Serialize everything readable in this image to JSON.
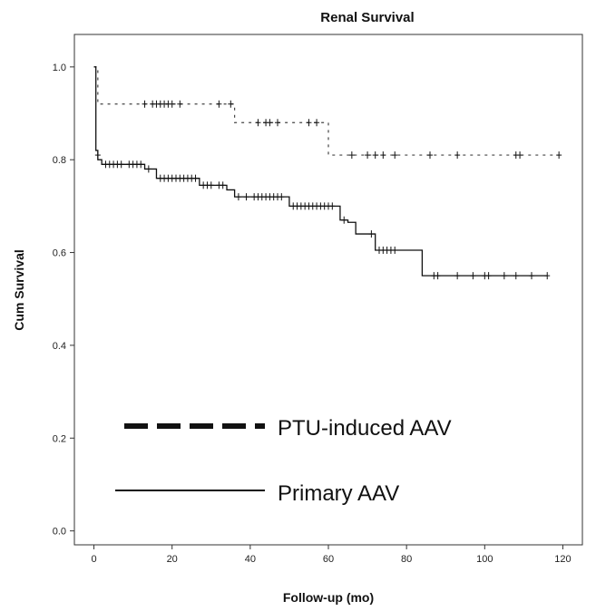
{
  "chart_data": {
    "type": "line",
    "title": "Renal Survival",
    "xlabel": "Follow-up (mo)",
    "ylabel": "Cum Survival",
    "xlim": [
      -5,
      125
    ],
    "ylim": [
      -0.03,
      1.07
    ],
    "x_ticks": [
      0,
      20,
      40,
      60,
      80,
      100,
      120
    ],
    "y_ticks": [
      "0.0",
      "0.2",
      "0.4",
      "0.6",
      "0.8",
      "1.0"
    ],
    "grid": false,
    "legend_position": "bottom-left",
    "series": [
      {
        "name": "PTU-induced AAV",
        "style": "dashed",
        "steps": [
          [
            0,
            1.0
          ],
          [
            1,
            0.92
          ],
          [
            36,
            0.88
          ],
          [
            60,
            0.81
          ],
          [
            119,
            0.81
          ]
        ],
        "censored": [
          [
            13,
            0.92
          ],
          [
            15,
            0.92
          ],
          [
            16,
            0.92
          ],
          [
            17,
            0.92
          ],
          [
            18,
            0.92
          ],
          [
            19,
            0.92
          ],
          [
            20,
            0.92
          ],
          [
            22,
            0.92
          ],
          [
            32,
            0.92
          ],
          [
            35,
            0.92
          ],
          [
            42,
            0.88
          ],
          [
            44,
            0.88
          ],
          [
            45,
            0.88
          ],
          [
            47,
            0.88
          ],
          [
            55,
            0.88
          ],
          [
            57,
            0.88
          ],
          [
            66,
            0.81
          ],
          [
            70,
            0.81
          ],
          [
            72,
            0.81
          ],
          [
            74,
            0.81
          ],
          [
            77,
            0.81
          ],
          [
            86,
            0.81
          ],
          [
            93,
            0.81
          ],
          [
            108,
            0.81
          ],
          [
            109,
            0.81
          ],
          [
            119,
            0.81
          ]
        ]
      },
      {
        "name": "Primary AAV",
        "style": "solid",
        "steps": [
          [
            0,
            1.0
          ],
          [
            0.5,
            0.82
          ],
          [
            1,
            0.8
          ],
          [
            2,
            0.79
          ],
          [
            13,
            0.78
          ],
          [
            16,
            0.76
          ],
          [
            27,
            0.745
          ],
          [
            34,
            0.735
          ],
          [
            36,
            0.72
          ],
          [
            50,
            0.7
          ],
          [
            63,
            0.67
          ],
          [
            65,
            0.665
          ],
          [
            67,
            0.64
          ],
          [
            72,
            0.605
          ],
          [
            84,
            0.55
          ],
          [
            116,
            0.55
          ]
        ],
        "censored": [
          [
            1,
            0.81
          ],
          [
            3,
            0.79
          ],
          [
            4,
            0.79
          ],
          [
            5,
            0.79
          ],
          [
            6,
            0.79
          ],
          [
            7,
            0.79
          ],
          [
            9,
            0.79
          ],
          [
            10,
            0.79
          ],
          [
            11,
            0.79
          ],
          [
            12,
            0.79
          ],
          [
            14,
            0.78
          ],
          [
            17,
            0.76
          ],
          [
            18,
            0.76
          ],
          [
            19,
            0.76
          ],
          [
            20,
            0.76
          ],
          [
            21,
            0.76
          ],
          [
            22,
            0.76
          ],
          [
            23,
            0.76
          ],
          [
            24,
            0.76
          ],
          [
            25,
            0.76
          ],
          [
            26,
            0.76
          ],
          [
            28,
            0.745
          ],
          [
            29,
            0.745
          ],
          [
            30,
            0.745
          ],
          [
            32,
            0.745
          ],
          [
            33,
            0.745
          ],
          [
            37,
            0.72
          ],
          [
            39,
            0.72
          ],
          [
            41,
            0.72
          ],
          [
            42,
            0.72
          ],
          [
            43,
            0.72
          ],
          [
            44,
            0.72
          ],
          [
            45,
            0.72
          ],
          [
            46,
            0.72
          ],
          [
            47,
            0.72
          ],
          [
            48,
            0.72
          ],
          [
            51,
            0.7
          ],
          [
            52,
            0.7
          ],
          [
            53,
            0.7
          ],
          [
            54,
            0.7
          ],
          [
            55,
            0.7
          ],
          [
            56,
            0.7
          ],
          [
            57,
            0.7
          ],
          [
            58,
            0.7
          ],
          [
            59,
            0.7
          ],
          [
            60,
            0.7
          ],
          [
            61,
            0.7
          ],
          [
            64,
            0.67
          ],
          [
            71,
            0.64
          ],
          [
            73,
            0.605
          ],
          [
            74,
            0.605
          ],
          [
            75,
            0.605
          ],
          [
            76,
            0.605
          ],
          [
            77,
            0.605
          ],
          [
            87,
            0.55
          ],
          [
            88,
            0.55
          ],
          [
            93,
            0.55
          ],
          [
            97,
            0.55
          ],
          [
            100,
            0.55
          ],
          [
            101,
            0.55
          ],
          [
            105,
            0.55
          ],
          [
            108,
            0.55
          ],
          [
            112,
            0.55
          ],
          [
            116,
            0.55
          ]
        ]
      }
    ]
  }
}
